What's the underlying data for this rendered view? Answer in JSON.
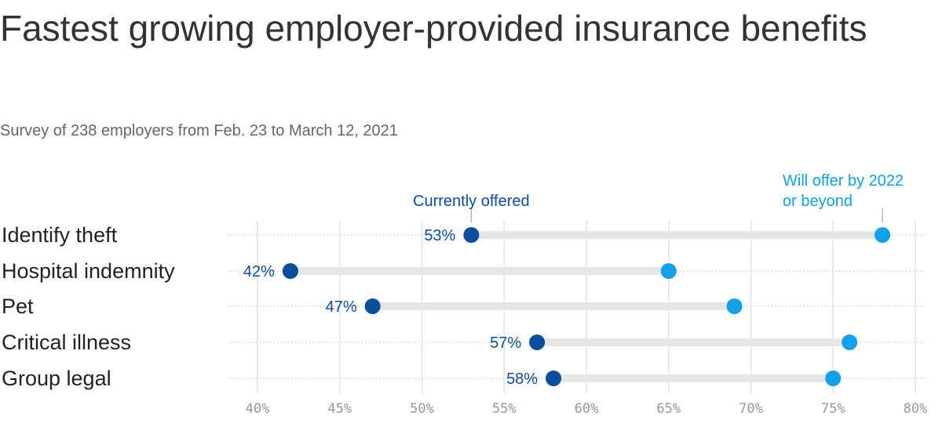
{
  "chart_data": {
    "type": "dumbbell",
    "title": "Fastest growing employer-provided insurance benefits",
    "subtitle": "Survey of 238 employers from Feb. 23 to March 12, 2021",
    "categories": [
      "Identify theft",
      "Hospital indemnity",
      "Pet",
      "Critical illness",
      "Group legal"
    ],
    "series": [
      {
        "name": "Currently offered",
        "values": [
          53,
          42,
          47,
          57,
          58
        ],
        "labels": [
          "53%",
          "42%",
          "47%",
          "57%",
          "58%"
        ]
      },
      {
        "name": "Will offer by 2022 or beyond",
        "values": [
          78,
          65,
          69,
          76,
          75
        ]
      }
    ],
    "legend_lines": [
      "Will offer by 2022",
      "or beyond"
    ],
    "x_ticks": [
      "40%",
      "45%",
      "50%",
      "55%",
      "60%",
      "65%",
      "70%",
      "75%",
      "80%"
    ],
    "xlim": [
      40,
      80
    ],
    "grid": true,
    "colors": {
      "current": "#0b4e9b",
      "future": "#12a0e8",
      "bar": "#e6e6e6",
      "grid": "#e4e4e4"
    }
  }
}
